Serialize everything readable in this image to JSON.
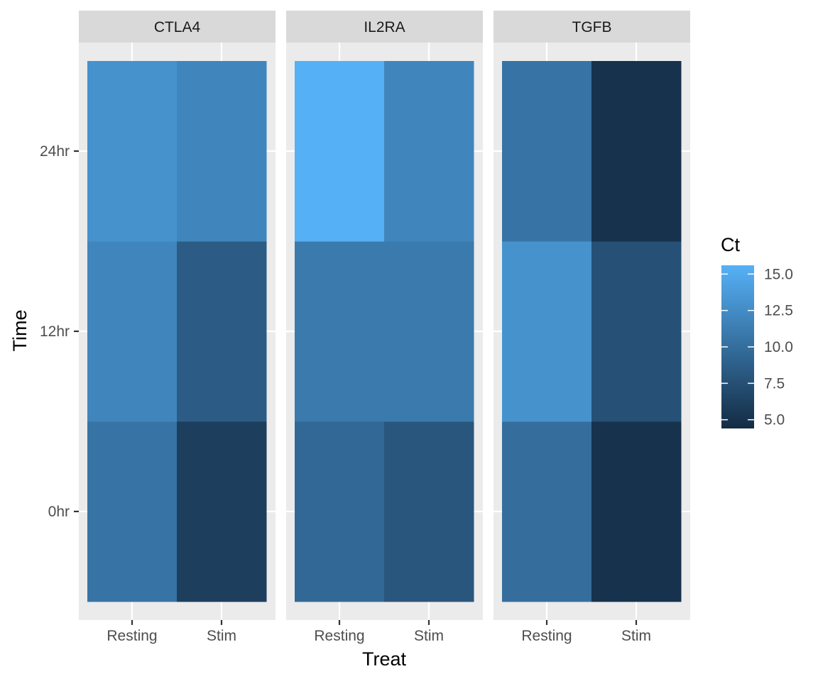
{
  "chart_data": {
    "type": "heatmap",
    "facets": [
      "CTLA4",
      "IL2RA",
      "TGFB"
    ],
    "x_categories": [
      "Resting",
      "Stim"
    ],
    "y_categories": [
      "0hr",
      "12hr",
      "24hr"
    ],
    "xlabel": "Treat",
    "ylabel": "Time",
    "legend": {
      "title": "Ct",
      "range": [
        4.4,
        15.6
      ],
      "breaks": [
        5.0,
        7.5,
        10.0,
        12.5,
        15.0
      ],
      "break_labels": [
        "5.0",
        "7.5",
        "10.0",
        "12.5",
        "15.0"
      ],
      "low_color": "#132B43",
      "high_color": "#56B1F7",
      "placement": "right"
    },
    "cells": [
      {
        "facet": "CTLA4",
        "treat": "Resting",
        "time": "0hr",
        "ct": 10.5
      },
      {
        "facet": "CTLA4",
        "treat": "Stim",
        "time": "0hr",
        "ct": 6.0
      },
      {
        "facet": "CTLA4",
        "treat": "Resting",
        "time": "12hr",
        "ct": 12.0
      },
      {
        "facet": "CTLA4",
        "treat": "Stim",
        "time": "12hr",
        "ct": 8.5
      },
      {
        "facet": "CTLA4",
        "treat": "Resting",
        "time": "24hr",
        "ct": 13.0
      },
      {
        "facet": "CTLA4",
        "treat": "Stim",
        "time": "24hr",
        "ct": 12.0
      },
      {
        "facet": "IL2RA",
        "treat": "Resting",
        "time": "0hr",
        "ct": 9.5
      },
      {
        "facet": "IL2RA",
        "treat": "Stim",
        "time": "0hr",
        "ct": 8.0
      },
      {
        "facet": "IL2RA",
        "treat": "Resting",
        "time": "12hr",
        "ct": 11.0
      },
      {
        "facet": "IL2RA",
        "treat": "Stim",
        "time": "12hr",
        "ct": 11.0
      },
      {
        "facet": "IL2RA",
        "treat": "Resting",
        "time": "24hr",
        "ct": 15.5
      },
      {
        "facet": "IL2RA",
        "treat": "Stim",
        "time": "24hr",
        "ct": 12.0
      },
      {
        "facet": "TGFB",
        "treat": "Resting",
        "time": "0hr",
        "ct": 10.0
      },
      {
        "facet": "TGFB",
        "treat": "Stim",
        "time": "0hr",
        "ct": 5.0
      },
      {
        "facet": "TGFB",
        "treat": "Resting",
        "time": "12hr",
        "ct": 13.0
      },
      {
        "facet": "TGFB",
        "treat": "Stim",
        "time": "12hr",
        "ct": 7.5
      },
      {
        "facet": "TGFB",
        "treat": "Resting",
        "time": "24hr",
        "ct": 10.5
      },
      {
        "facet": "TGFB",
        "treat": "Stim",
        "time": "24hr",
        "ct": 5.0
      }
    ],
    "panel_background": "#EBEBEB",
    "strip_background": "#D9D9D9",
    "grid": true
  }
}
